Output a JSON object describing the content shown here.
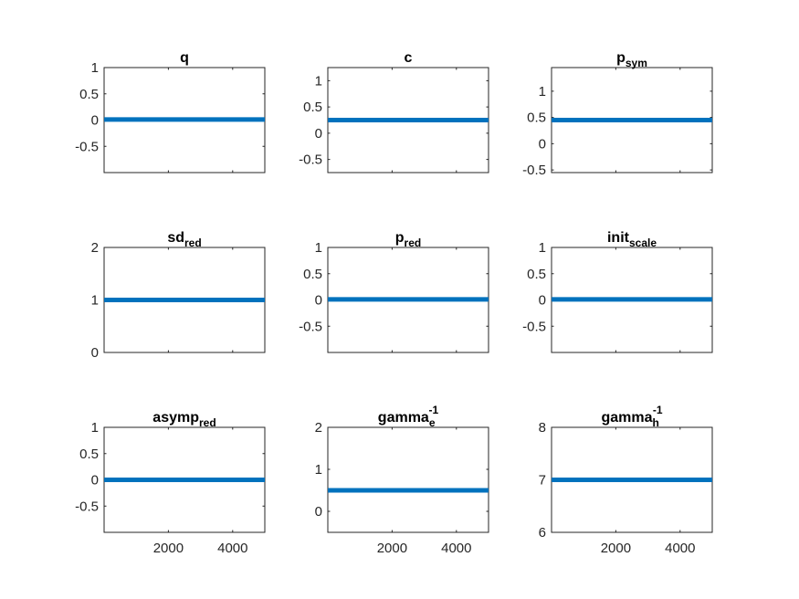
{
  "colors": {
    "line": "#0072BD",
    "axis": "#262626",
    "background": "#ffffff"
  },
  "chart_data": [
    {
      "type": "line",
      "title": "q",
      "title_sub": "",
      "title_sup": "",
      "ylim": [
        -1,
        1
      ],
      "yticks": [
        -0.5,
        0,
        0.5,
        1
      ],
      "ytick_labels": [
        "-0.5",
        "0",
        "0.5",
        "1"
      ],
      "xlim": [
        0,
        5000
      ],
      "xticks": [
        2000,
        4000
      ],
      "xtick_labels": [],
      "series": [
        {
          "x": [
            1,
            5000
          ],
          "values": [
            0.01,
            0.01
          ]
        }
      ]
    },
    {
      "type": "line",
      "title": "c",
      "title_sub": "",
      "title_sup": "",
      "ylim": [
        -0.75,
        1.25
      ],
      "yticks": [
        -0.5,
        0,
        0.5,
        1
      ],
      "ytick_labels": [
        "-0.5",
        "0",
        "0.5",
        "1"
      ],
      "xlim": [
        0,
        5000
      ],
      "xticks": [
        2000,
        4000
      ],
      "xtick_labels": [],
      "series": [
        {
          "x": [
            1,
            5000
          ],
          "values": [
            0.25,
            0.25
          ]
        }
      ]
    },
    {
      "type": "line",
      "title": "p",
      "title_sub": "sym",
      "title_sup": "",
      "ylim": [
        -0.55,
        1.45
      ],
      "yticks": [
        -0.5,
        0,
        0.5,
        1
      ],
      "ytick_labels": [
        "-0.5",
        "0",
        "0.5",
        "1"
      ],
      "xlim": [
        0,
        5000
      ],
      "xticks": [
        2000,
        4000
      ],
      "xtick_labels": [],
      "series": [
        {
          "x": [
            1,
            5000
          ],
          "values": [
            0.45,
            0.45
          ]
        }
      ]
    },
    {
      "type": "line",
      "title": "sd",
      "title_sub": "red",
      "title_sup": "",
      "ylim": [
        0,
        2
      ],
      "yticks": [
        0,
        1,
        2
      ],
      "ytick_labels": [
        "0",
        "1",
        "2"
      ],
      "xlim": [
        0,
        5000
      ],
      "xticks": [
        2000,
        4000
      ],
      "xtick_labels": [],
      "series": [
        {
          "x": [
            1,
            5000
          ],
          "values": [
            1,
            1
          ]
        }
      ]
    },
    {
      "type": "line",
      "title": "p",
      "title_sub": "red",
      "title_sup": "",
      "ylim": [
        -1,
        1
      ],
      "yticks": [
        -0.5,
        0,
        0.5,
        1
      ],
      "ytick_labels": [
        "-0.5",
        "0",
        "0.5",
        "1"
      ],
      "xlim": [
        0,
        5000
      ],
      "xticks": [
        2000,
        4000
      ],
      "xtick_labels": [],
      "series": [
        {
          "x": [
            1,
            5000
          ],
          "values": [
            0.01,
            0.01
          ]
        }
      ]
    },
    {
      "type": "line",
      "title": "init",
      "title_sub": "scale",
      "title_sup": "",
      "ylim": [
        -1,
        1
      ],
      "yticks": [
        -0.5,
        0,
        0.5,
        1
      ],
      "ytick_labels": [
        "-0.5",
        "0",
        "0.5",
        "1"
      ],
      "xlim": [
        0,
        5000
      ],
      "xticks": [
        2000,
        4000
      ],
      "xtick_labels": [],
      "series": [
        {
          "x": [
            1,
            5000
          ],
          "values": [
            0.01,
            0.01
          ]
        }
      ]
    },
    {
      "type": "line",
      "title": "asymp",
      "title_sub": "red",
      "title_sup": "",
      "ylim": [
        -1,
        1
      ],
      "yticks": [
        -0.5,
        0,
        0.5,
        1
      ],
      "ytick_labels": [
        "-0.5",
        "0",
        "0.5",
        "1"
      ],
      "xlim": [
        0,
        5000
      ],
      "xticks": [
        2000,
        4000
      ],
      "xtick_labels": [
        "2000",
        "4000"
      ],
      "series": [
        {
          "x": [
            1,
            5000
          ],
          "values": [
            0,
            0
          ]
        }
      ]
    },
    {
      "type": "line",
      "title": "gamma",
      "title_sub": "e",
      "title_sup": "-1",
      "ylim": [
        -0.5,
        2
      ],
      "yticks": [
        0,
        1,
        2
      ],
      "ytick_labels": [
        "0",
        "1",
        "2"
      ],
      "xlim": [
        0,
        5000
      ],
      "xticks": [
        2000,
        4000
      ],
      "xtick_labels": [
        "2000",
        "4000"
      ],
      "series": [
        {
          "x": [
            1,
            5000
          ],
          "values": [
            0.5,
            0.5
          ]
        }
      ]
    },
    {
      "type": "line",
      "title": "gamma",
      "title_sub": "h",
      "title_sup": "-1",
      "ylim": [
        6,
        8
      ],
      "yticks": [
        6,
        7,
        8
      ],
      "ytick_labels": [
        "6",
        "7",
        "8"
      ],
      "xlim": [
        0,
        5000
      ],
      "xticks": [
        2000,
        4000
      ],
      "xtick_labels": [
        "2000",
        "4000"
      ],
      "series": [
        {
          "x": [
            1,
            5000
          ],
          "values": [
            7,
            7
          ]
        }
      ]
    }
  ]
}
